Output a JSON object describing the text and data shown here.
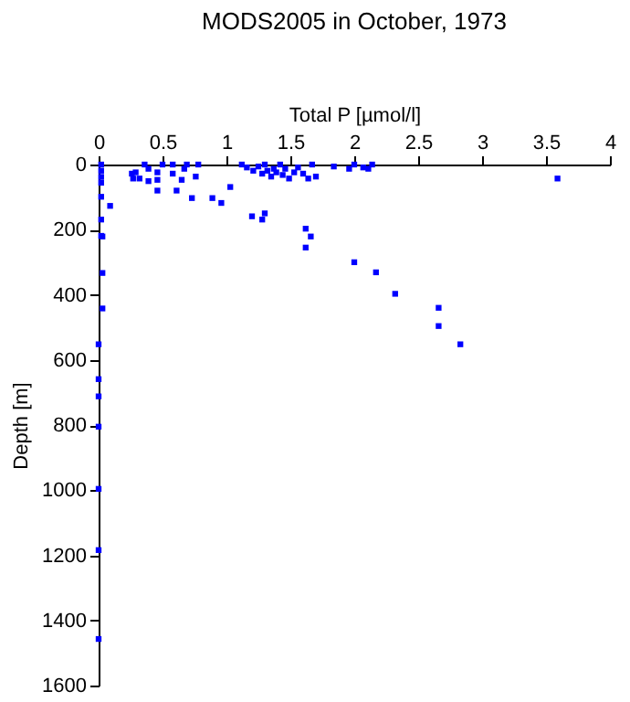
{
  "chart_data": {
    "type": "scatter",
    "title": "MODS2005 in October, 1973",
    "xlabel": "Total P [µmol/l]",
    "ylabel": "Depth [m]",
    "x": [
      0.02,
      0.02,
      0.02,
      0.02,
      0.02,
      0.02,
      0.02,
      0.09,
      0.26,
      0.29,
      0.27,
      0.32,
      0.36,
      0.39,
      0.39,
      0.46,
      0.46,
      0.46,
      0.5,
      0.58,
      0.58,
      0.61,
      0.65,
      0.67,
      0.69,
      0.78,
      0.76,
      0.73,
      0.89,
      0.96,
      1.03,
      1.12,
      1.16,
      1.21,
      1.25,
      1.28,
      1.3,
      1.32,
      1.35,
      1.37,
      1.39,
      1.42,
      1.44,
      1.46,
      1.49,
      1.53,
      1.56,
      1.6,
      1.64,
      1.67,
      1.7,
      1.84,
      1.96,
      2.0,
      2.07,
      2.11,
      2.14,
      1.2,
      1.3,
      1.28,
      3.59,
      0.03,
      0.03,
      0.03,
      0.0,
      0.0,
      0.0,
      0.0,
      1.62,
      1.66,
      1.62,
      2.0,
      2.17,
      2.32,
      2.66,
      2.66,
      2.83,
      0.0,
      0.0,
      0.0
    ],
    "values": [
      0,
      19,
      38,
      56,
      99,
      169,
      219,
      127,
      28,
      24,
      43,
      43,
      0,
      13,
      51,
      24,
      47,
      80,
      0,
      0,
      28,
      80,
      47,
      13,
      0,
      0,
      37,
      103,
      103,
      118,
      69,
      0,
      9,
      19,
      6,
      28,
      0,
      19,
      37,
      13,
      24,
      0,
      32,
      13,
      43,
      24,
      9,
      28,
      43,
      0,
      37,
      6,
      13,
      0,
      9,
      13,
      0,
      159,
      150,
      169,
      43,
      221,
      333,
      442,
      552,
      659,
      712,
      805,
      197,
      221,
      255,
      300,
      331,
      397,
      440,
      496,
      552,
      996,
      1184,
      1457
    ],
    "color": "#0000ff",
    "marker": "square",
    "xlim": [
      0,
      4
    ],
    "xticks": [
      0,
      0.5,
      1,
      1.5,
      2,
      2.5,
      3,
      3.5,
      4
    ],
    "ylim": [
      1600,
      0
    ],
    "yticks": [
      0,
      200,
      400,
      600,
      800,
      1000,
      1200,
      1400,
      1600
    ],
    "grid": false
  }
}
